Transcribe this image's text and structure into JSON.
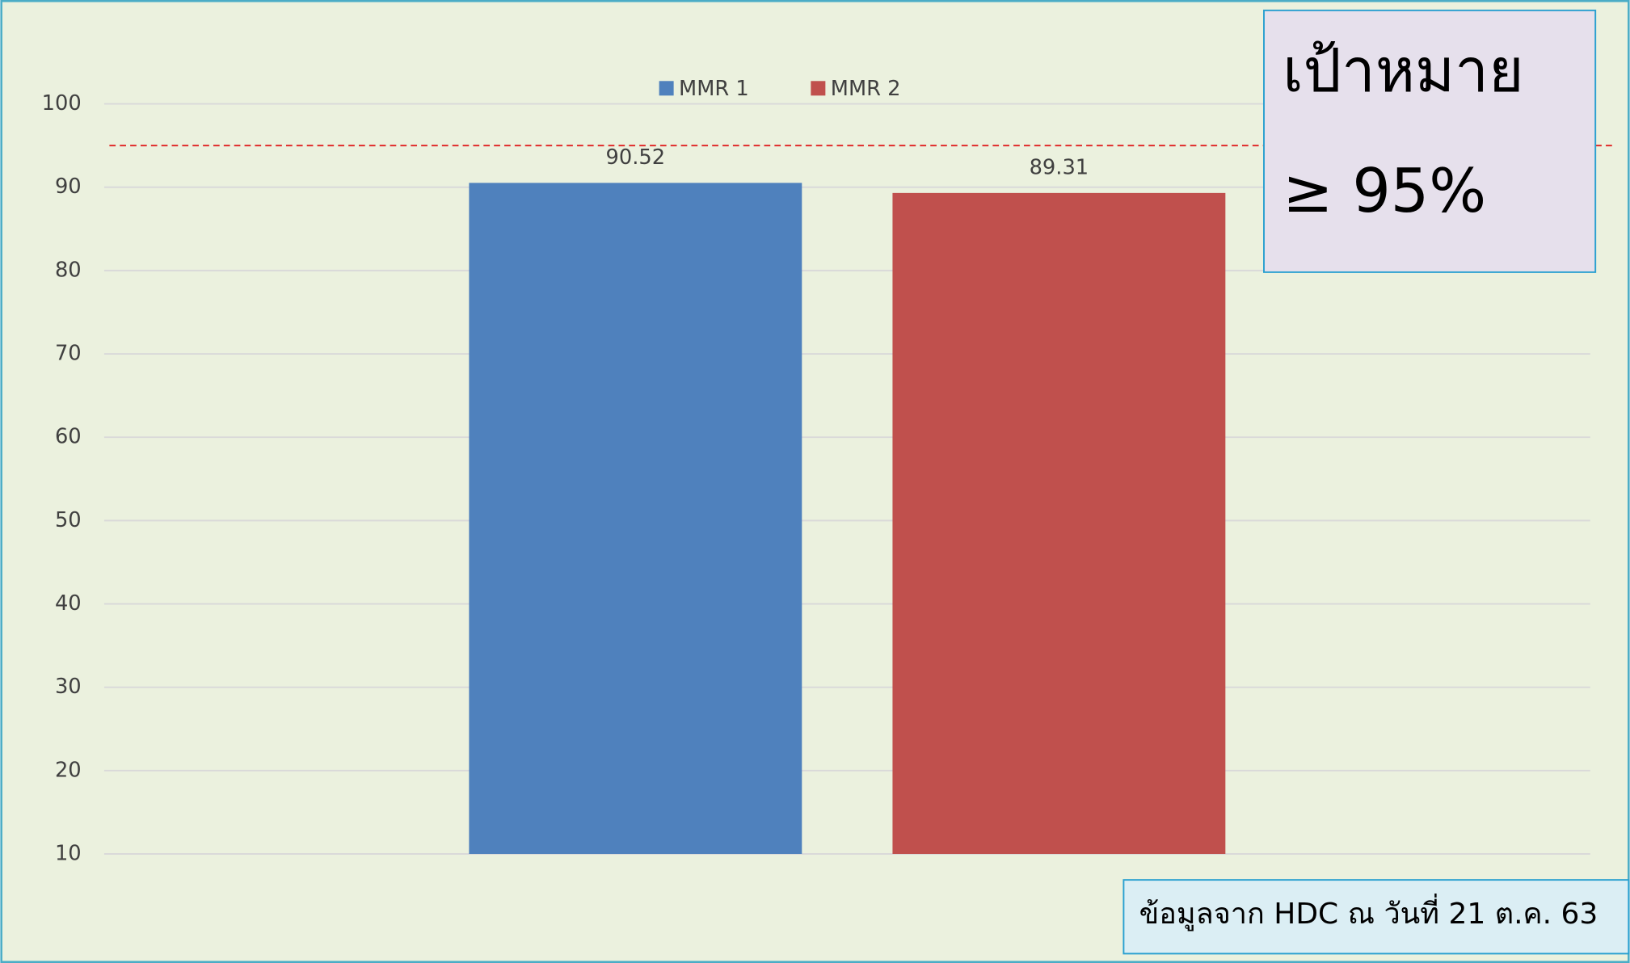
{
  "chart_data": {
    "type": "bar",
    "categories": [
      null
    ],
    "series": [
      {
        "name": "MMR 1",
        "color": "#4f81bd",
        "values": [
          90.52
        ]
      },
      {
        "name": "MMR 2",
        "color": "#c0504d",
        "values": [
          89.31
        ]
      }
    ],
    "ylim": [
      10,
      100
    ],
    "yticks": [
      10,
      20,
      30,
      40,
      50,
      60,
      70,
      80,
      90,
      100
    ],
    "grid": true,
    "legend": "top",
    "reference_line": {
      "value": 95,
      "color": "#e02020"
    },
    "annotations": [
      "เป้าหมาย",
      "≥ 95%",
      "ข้อมูลจาก HDC ณ วันที่ 21 ต.ค. 63"
    ]
  }
}
